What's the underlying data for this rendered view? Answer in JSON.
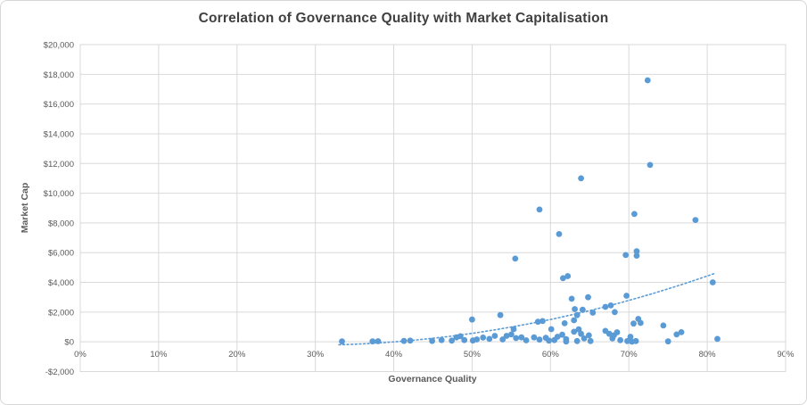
{
  "colors": {
    "accent_blue": "#5B9BD5",
    "grid": "#D9D9D9",
    "tick_text": "#595959",
    "title_text": "#404040",
    "frame_border": "#D7D7D7"
  },
  "chart_data": {
    "type": "scatter",
    "title": "Correlation of Governance Quality with Market Capitalisation",
    "xlabel": "Governance Quality",
    "ylabel": "Market Cap",
    "xlim": [
      0,
      90
    ],
    "ylim": [
      -2000,
      20000
    ],
    "x_tick_step": 10,
    "y_tick_step": 2000,
    "x_ticks": [
      "0%",
      "10%",
      "20%",
      "30%",
      "40%",
      "50%",
      "60%",
      "70%",
      "80%",
      "90%"
    ],
    "y_ticks": [
      "-$2,000",
      "$0",
      "$2,000",
      "$4,000",
      "$6,000",
      "$8,000",
      "$10,000",
      "$12,000",
      "$14,000",
      "$16,000",
      "$18,000",
      "$20,000"
    ],
    "grid": true,
    "legend": "none",
    "marker_color": "#5B9BD5",
    "grid_color": "#D9D9D9",
    "tick_color": "#595959",
    "points": [
      [
        33.4,
        30
      ],
      [
        37.3,
        30
      ],
      [
        38.0,
        40
      ],
      [
        41.3,
        60
      ],
      [
        42.1,
        80
      ],
      [
        44.9,
        60
      ],
      [
        46.1,
        120
      ],
      [
        47.4,
        80
      ],
      [
        48.0,
        300
      ],
      [
        48.5,
        380
      ],
      [
        49.0,
        120
      ],
      [
        50.0,
        1500
      ],
      [
        50.1,
        90
      ],
      [
        50.6,
        160
      ],
      [
        51.4,
        290
      ],
      [
        52.2,
        200
      ],
      [
        52.9,
        400
      ],
      [
        53.6,
        1800
      ],
      [
        53.9,
        160
      ],
      [
        54.4,
        400
      ],
      [
        55.0,
        500
      ],
      [
        55.3,
        850
      ],
      [
        55.5,
        5600
      ],
      [
        55.6,
        250
      ],
      [
        56.3,
        300
      ],
      [
        56.9,
        100
      ],
      [
        57.9,
        300
      ],
      [
        58.4,
        1350
      ],
      [
        58.6,
        8900
      ],
      [
        58.6,
        150
      ],
      [
        59.0,
        1400
      ],
      [
        59.4,
        270
      ],
      [
        59.8,
        80
      ],
      [
        60.1,
        850
      ],
      [
        60.5,
        120
      ],
      [
        60.9,
        340
      ],
      [
        61.1,
        7250
      ],
      [
        61.5,
        480
      ],
      [
        61.6,
        4280
      ],
      [
        61.8,
        1250
      ],
      [
        62.0,
        180
      ],
      [
        62.0,
        20
      ],
      [
        62.2,
        4420
      ],
      [
        62.7,
        2900
      ],
      [
        63.0,
        1450
      ],
      [
        63.0,
        680
      ],
      [
        63.1,
        2200
      ],
      [
        63.4,
        1800
      ],
      [
        63.4,
        50
      ],
      [
        63.6,
        840
      ],
      [
        63.9,
        11000
      ],
      [
        63.9,
        540
      ],
      [
        64.1,
        2160
      ],
      [
        64.3,
        230
      ],
      [
        64.8,
        3000
      ],
      [
        64.9,
        440
      ],
      [
        65.1,
        50
      ],
      [
        65.4,
        1960
      ],
      [
        67.0,
        740
      ],
      [
        67.0,
        2350
      ],
      [
        67.5,
        540
      ],
      [
        67.7,
        2450
      ],
      [
        67.9,
        230
      ],
      [
        68.1,
        440
      ],
      [
        68.2,
        2000
      ],
      [
        68.5,
        640
      ],
      [
        68.9,
        110
      ],
      [
        69.6,
        5840
      ],
      [
        69.7,
        3100
      ],
      [
        69.8,
        50
      ],
      [
        70.2,
        340
      ],
      [
        70.4,
        10
      ],
      [
        70.6,
        1230
      ],
      [
        70.7,
        8600
      ],
      [
        70.9,
        50
      ],
      [
        71.0,
        6100
      ],
      [
        71.0,
        5800
      ],
      [
        71.2,
        1540
      ],
      [
        71.5,
        1270
      ],
      [
        72.4,
        17600
      ],
      [
        72.7,
        11900
      ],
      [
        74.4,
        1100
      ],
      [
        75.0,
        30
      ],
      [
        76.1,
        500
      ],
      [
        76.7,
        650
      ],
      [
        78.5,
        8200
      ],
      [
        80.7,
        4000
      ],
      [
        81.3,
        200
      ]
    ],
    "trendline": {
      "style": "dotted",
      "color": "#5B9BD5",
      "points": [
        [
          33,
          -200
        ],
        [
          35,
          -162
        ],
        [
          37,
          -110
        ],
        [
          39,
          -44
        ],
        [
          41,
          37
        ],
        [
          43,
          131
        ],
        [
          45,
          239
        ],
        [
          47,
          362
        ],
        [
          49,
          498
        ],
        [
          51,
          649
        ],
        [
          53,
          814
        ],
        [
          55,
          993
        ],
        [
          57,
          1186
        ],
        [
          59,
          1394
        ],
        [
          61,
          1615
        ],
        [
          63,
          1851
        ],
        [
          65,
          2101
        ],
        [
          67,
          2365
        ],
        [
          69,
          2643
        ],
        [
          71,
          2935
        ],
        [
          73,
          3242
        ],
        [
          75,
          3563
        ],
        [
          77,
          3897
        ],
        [
          79,
          4246
        ],
        [
          81,
          4609
        ]
      ]
    }
  }
}
